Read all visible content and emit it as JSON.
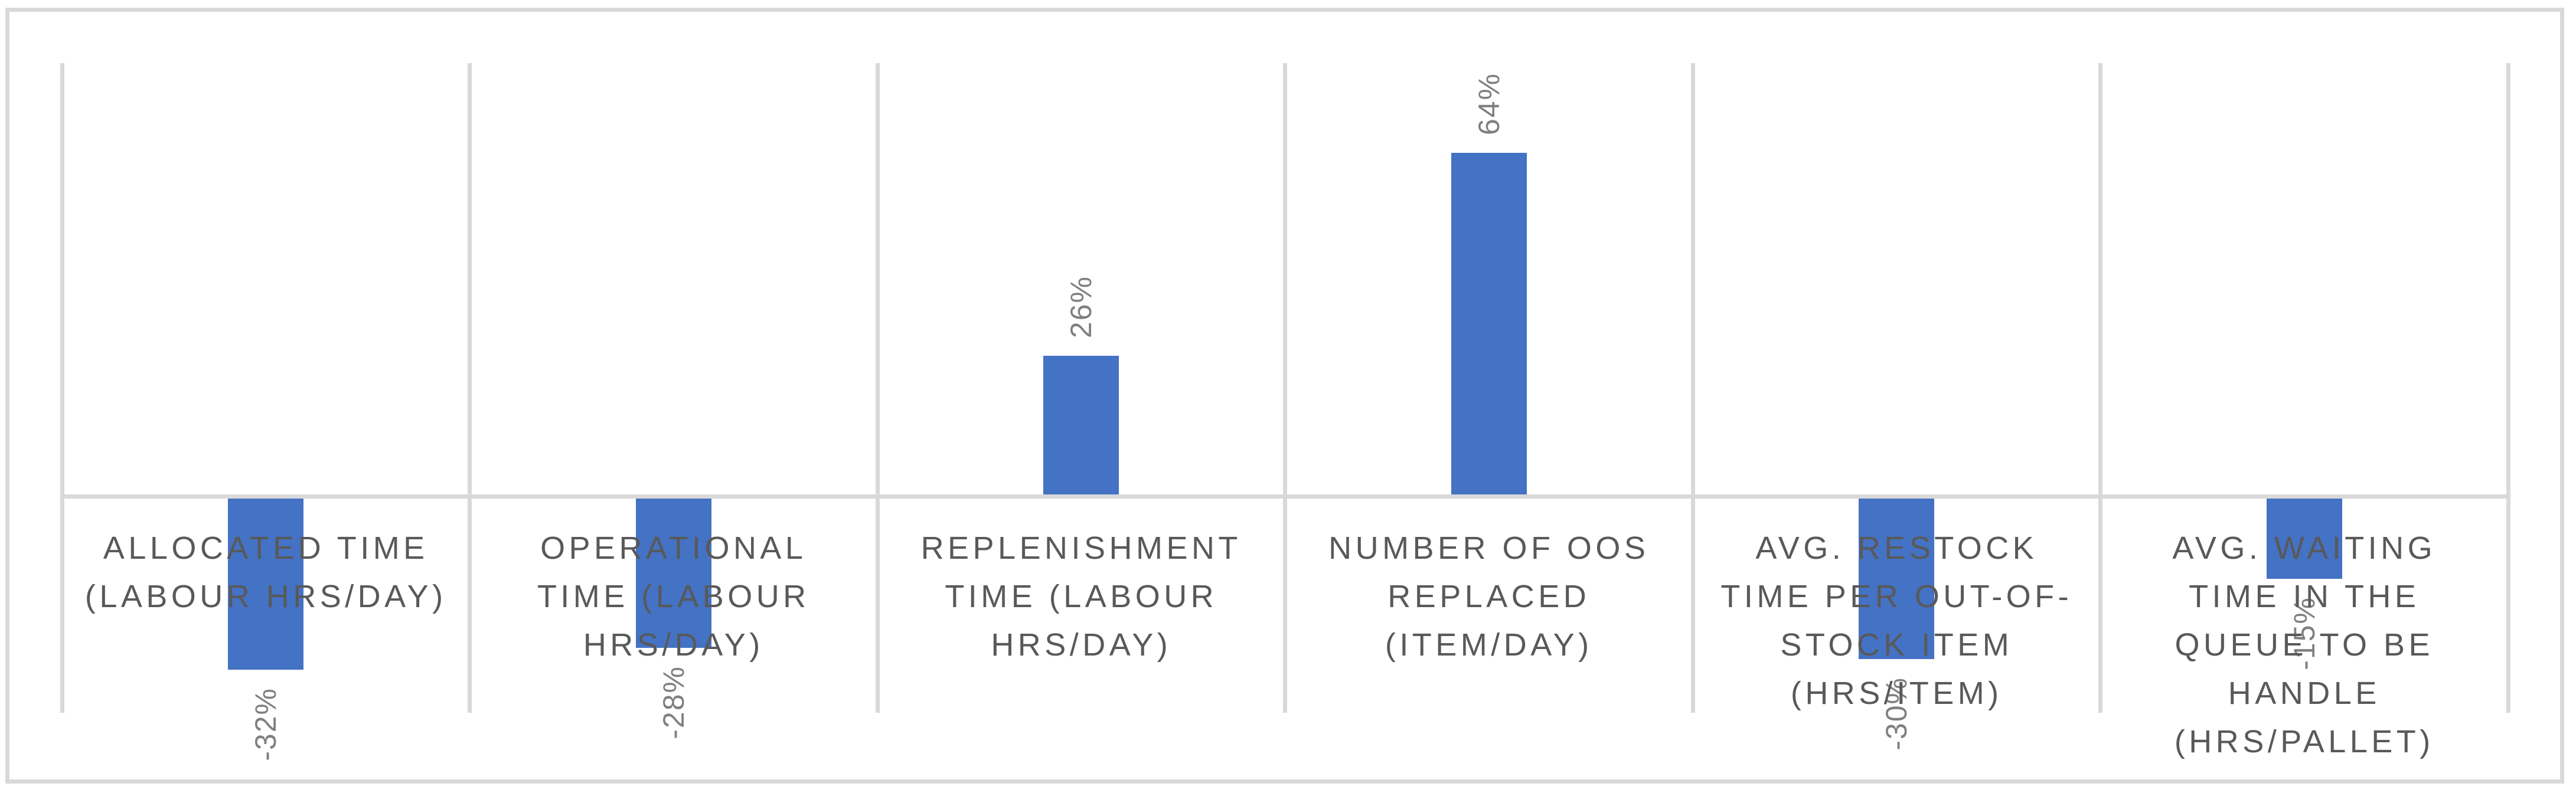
{
  "chart_data": {
    "type": "bar",
    "title": "",
    "xlabel": "",
    "ylabel": "",
    "legend": "none",
    "grid": "vertical category separators only, no horizontal gridlines",
    "ylim_pct": [
      -40,
      80
    ],
    "categories": [
      "ALLOCATED TIME (LABOUR HRS/DAY)",
      "OPERATIONAL TIME (LABOUR HRS/DAY)",
      "REPLENISHMENT TIME (LABOUR HRS/DAY)",
      "NUMBER OF OOS REPLACED (ITEM/DAY)",
      "AVG. RESTOCK TIME PER OUT-OF-STOCK ITEM (HRS/ITEM)",
      "AVG. WAITING TIME IN THE QUEUE TO BE HANDLE (HRS/PALLET)"
    ],
    "category_lines": [
      [
        "ALLOCATED TIME",
        "(LABOUR HRS/DAY)"
      ],
      [
        "OPERATIONAL",
        "TIME (LABOUR",
        "HRS/DAY)"
      ],
      [
        "REPLENISHMENT",
        "TIME (LABOUR",
        "HRS/DAY)"
      ],
      [
        "NUMBER OF OOS",
        "REPLACED",
        "(ITEM/DAY)"
      ],
      [
        "AVG. RESTOCK",
        "TIME PER OUT-OF-",
        "STOCK ITEM",
        "(HRS/ITEM)"
      ],
      [
        "AVG. WAITING",
        "TIME IN THE",
        "QUEUE TO BE",
        "HANDLE",
        "(HRS/PALLET)"
      ]
    ],
    "values_pct": [
      -32,
      -28,
      26,
      64,
      -30,
      -15
    ],
    "data_labels": [
      "-32%",
      "-28%",
      "26%",
      "64%",
      "-30%",
      "-15%"
    ],
    "colors": {
      "bar": "#4472C4",
      "data_label": "#7F7F7F",
      "category_label": "#595959",
      "gridline": "#D9D9D9",
      "background": "#FFFFFF"
    }
  }
}
